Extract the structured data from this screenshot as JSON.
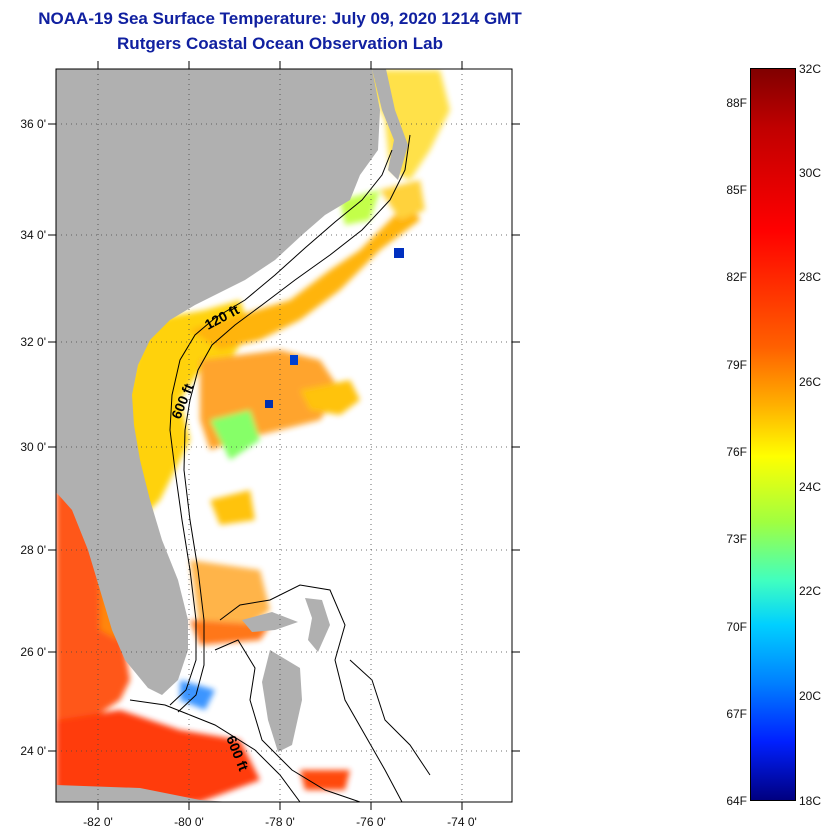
{
  "header": {
    "title": "NOAA-19 Sea Surface Temperature:  July 09, 2020 1214 GMT",
    "subtitle": "Rutgers Coastal Ocean Observation Lab"
  },
  "map": {
    "lat_labels": [
      "36 0'",
      "34 0'",
      "32 0'",
      "30 0'",
      "28 0'",
      "26 0'",
      "24 0'"
    ],
    "lon_labels": [
      "-82 0'",
      "-80 0'",
      "-78 0'",
      "-76 0'",
      "-74 0'"
    ],
    "contours": [
      {
        "label": "120 ft"
      },
      {
        "label": "600 ft"
      },
      {
        "label": "600 ft"
      }
    ],
    "colors": {
      "land": "#b0b0b0",
      "ocean_nodata": "#ffffff"
    }
  },
  "colorbar": {
    "fahrenheit": [
      "88F",
      "85F",
      "82F",
      "79F",
      "76F",
      "73F",
      "70F",
      "67F",
      "64F"
    ],
    "celsius": [
      "32C",
      "30C",
      "28C",
      "26C",
      "24C",
      "22C",
      "20C",
      "18C"
    ]
  }
}
